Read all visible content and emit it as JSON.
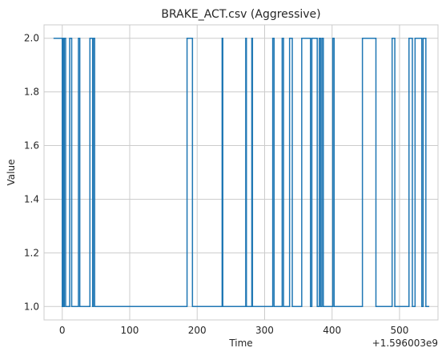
{
  "chart_data": {
    "type": "line",
    "step": "post",
    "title": "BRAKE_ACT.csv (Aggressive)",
    "xlabel": "Time",
    "ylabel": "Value",
    "x_offset_text": "+1.596003e9",
    "xlim": [
      -27,
      557
    ],
    "ylim": [
      0.95,
      2.05
    ],
    "xticks": [
      0,
      100,
      200,
      300,
      400,
      500
    ],
    "yticks": [
      1.0,
      1.2,
      1.4,
      1.6,
      1.8,
      2.0
    ],
    "xtick_labels": [
      "0",
      "100",
      "200",
      "300",
      "400",
      "500"
    ],
    "ytick_labels": [
      "1.0",
      "1.2",
      "1.4",
      "1.6",
      "1.8",
      "2.0"
    ],
    "grid": true,
    "style": "whitegrid",
    "line_color": "#1f77b4",
    "series": [
      {
        "points": [
          [
            -13,
            2
          ],
          [
            0,
            2
          ],
          [
            0,
            1
          ],
          [
            1,
            1
          ],
          [
            1,
            2
          ],
          [
            2,
            2
          ],
          [
            2,
            1
          ],
          [
            3,
            1
          ],
          [
            3,
            2
          ],
          [
            5,
            2
          ],
          [
            5,
            1
          ],
          [
            11,
            1
          ],
          [
            11,
            2
          ],
          [
            14,
            2
          ],
          [
            14,
            1
          ],
          [
            24,
            1
          ],
          [
            24,
            2
          ],
          [
            26,
            2
          ],
          [
            26,
            1
          ],
          [
            41,
            1
          ],
          [
            41,
            2
          ],
          [
            45,
            2
          ],
          [
            45,
            1
          ],
          [
            46,
            1
          ],
          [
            46,
            2
          ],
          [
            48,
            2
          ],
          [
            48,
            1
          ],
          [
            185,
            1
          ],
          [
            185,
            2
          ],
          [
            193,
            2
          ],
          [
            193,
            1
          ],
          [
            237,
            1
          ],
          [
            237,
            2
          ],
          [
            238,
            2
          ],
          [
            238,
            1
          ],
          [
            272,
            1
          ],
          [
            272,
            2
          ],
          [
            273,
            2
          ],
          [
            273,
            1
          ],
          [
            281,
            1
          ],
          [
            281,
            2
          ],
          [
            282,
            2
          ],
          [
            282,
            1
          ],
          [
            312,
            1
          ],
          [
            312,
            2
          ],
          [
            314,
            2
          ],
          [
            314,
            1
          ],
          [
            326,
            1
          ],
          [
            326,
            2
          ],
          [
            328,
            2
          ],
          [
            328,
            1
          ],
          [
            337,
            1
          ],
          [
            337,
            2
          ],
          [
            341,
            2
          ],
          [
            341,
            1
          ],
          [
            355,
            1
          ],
          [
            355,
            2
          ],
          [
            368,
            2
          ],
          [
            368,
            1
          ],
          [
            370,
            1
          ],
          [
            370,
            2
          ],
          [
            378,
            2
          ],
          [
            378,
            1
          ],
          [
            381,
            1
          ],
          [
            381,
            2
          ],
          [
            383,
            2
          ],
          [
            383,
            1
          ],
          [
            385,
            1
          ],
          [
            385,
            2
          ],
          [
            387,
            2
          ],
          [
            387,
            1
          ],
          [
            401,
            1
          ],
          [
            401,
            2
          ],
          [
            403,
            2
          ],
          [
            403,
            1
          ],
          [
            445,
            1
          ],
          [
            445,
            2
          ],
          [
            465,
            2
          ],
          [
            465,
            1
          ],
          [
            489,
            1
          ],
          [
            489,
            2
          ],
          [
            493,
            2
          ],
          [
            493,
            1
          ],
          [
            514,
            1
          ],
          [
            514,
            2
          ],
          [
            519,
            2
          ],
          [
            519,
            1
          ],
          [
            523,
            1
          ],
          [
            523,
            2
          ],
          [
            533,
            2
          ],
          [
            533,
            1
          ],
          [
            535,
            1
          ],
          [
            535,
            2
          ],
          [
            539,
            2
          ],
          [
            539,
            1
          ],
          [
            544,
            1
          ]
        ]
      }
    ]
  }
}
